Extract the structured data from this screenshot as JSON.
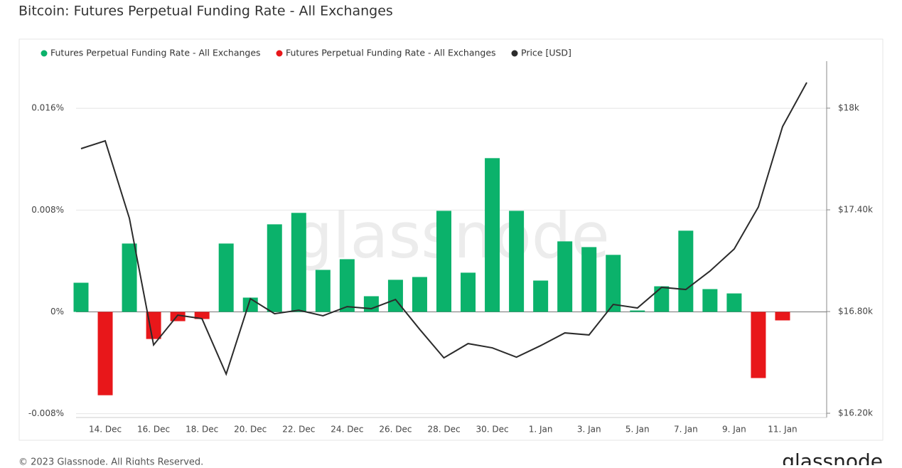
{
  "chart_data": {
    "type": "bar",
    "title": "Bitcoin: Futures Perpetual Funding Rate - All Exchanges",
    "watermark": "glassnode",
    "footer": "© 2023 Glassnode. All Rights Reserved.",
    "logo": "glassnode",
    "categories": [
      null,
      "14. Dec",
      null,
      "16. Dec",
      null,
      "18. Dec",
      null,
      "20. Dec",
      null,
      "22. Dec",
      null,
      "24. Dec",
      null,
      "26. Dec",
      null,
      "28. Dec",
      null,
      "30. Dec",
      null,
      "1. Jan",
      null,
      "3. Jan",
      null,
      "5. Jan",
      null,
      "7. Jan",
      null,
      "9. Jan",
      null,
      "11. Jan",
      null
    ],
    "series": [
      {
        "name": "Futures Perpetual Funding Rate - All Exchanges",
        "color": "#0bb26b",
        "type": "bar",
        "values": [
          0.00229,
          null,
          0.00537,
          null,
          null,
          null,
          0.00537,
          0.00112,
          0.00688,
          0.00778,
          0.0033,
          0.00414,
          0.00123,
          0.00252,
          0.00274,
          0.00794,
          0.00308,
          0.01208,
          0.00794,
          0.00246,
          0.00554,
          0.00509,
          0.00448,
          0.00011,
          0.00201,
          0.00638,
          0.00179,
          0.00145,
          null,
          null,
          null
        ]
      },
      {
        "name": "Futures Perpetual Funding Rate - All Exchanges",
        "color": "#e8171a",
        "type": "bar",
        "values": [
          null,
          -0.00655,
          null,
          -0.00213,
          -0.00073,
          -0.00056,
          null,
          null,
          null,
          null,
          null,
          null,
          null,
          null,
          null,
          null,
          null,
          null,
          null,
          null,
          null,
          null,
          null,
          null,
          null,
          null,
          null,
          null,
          -0.0052,
          -0.00067,
          null
        ]
      },
      {
        "name": "Price [USD]",
        "color": "#2b2b2b",
        "type": "line",
        "axis": "y2",
        "values": [
          17761,
          17807,
          17350,
          16603,
          16779,
          16758,
          16431,
          16876,
          16787,
          16808,
          16775,
          16829,
          16817,
          16871,
          16695,
          16527,
          16611,
          16586,
          16531,
          16599,
          16674,
          16662,
          16842,
          16821,
          16943,
          16930,
          17039,
          17169,
          17417,
          17891,
          18151
        ]
      }
    ],
    "ylim": [
      -0.0083,
      0.0197
    ],
    "yticks": [
      {
        "value": -0.008,
        "label": "-0.008%"
      },
      {
        "value": 0,
        "label": "0%"
      },
      {
        "value": 0.008,
        "label": "0.008%"
      },
      {
        "value": 0.016,
        "label": "0.016%"
      }
    ],
    "y2lim": [
      16175,
      18277
    ],
    "y2ticks": [
      {
        "value": 16200,
        "label": "$16.20k"
      },
      {
        "value": 16800,
        "label": "$16.80k"
      },
      {
        "value": 17400,
        "label": "$17.40k"
      },
      {
        "value": 18000,
        "label": "$18k"
      }
    ],
    "grid": true
  }
}
